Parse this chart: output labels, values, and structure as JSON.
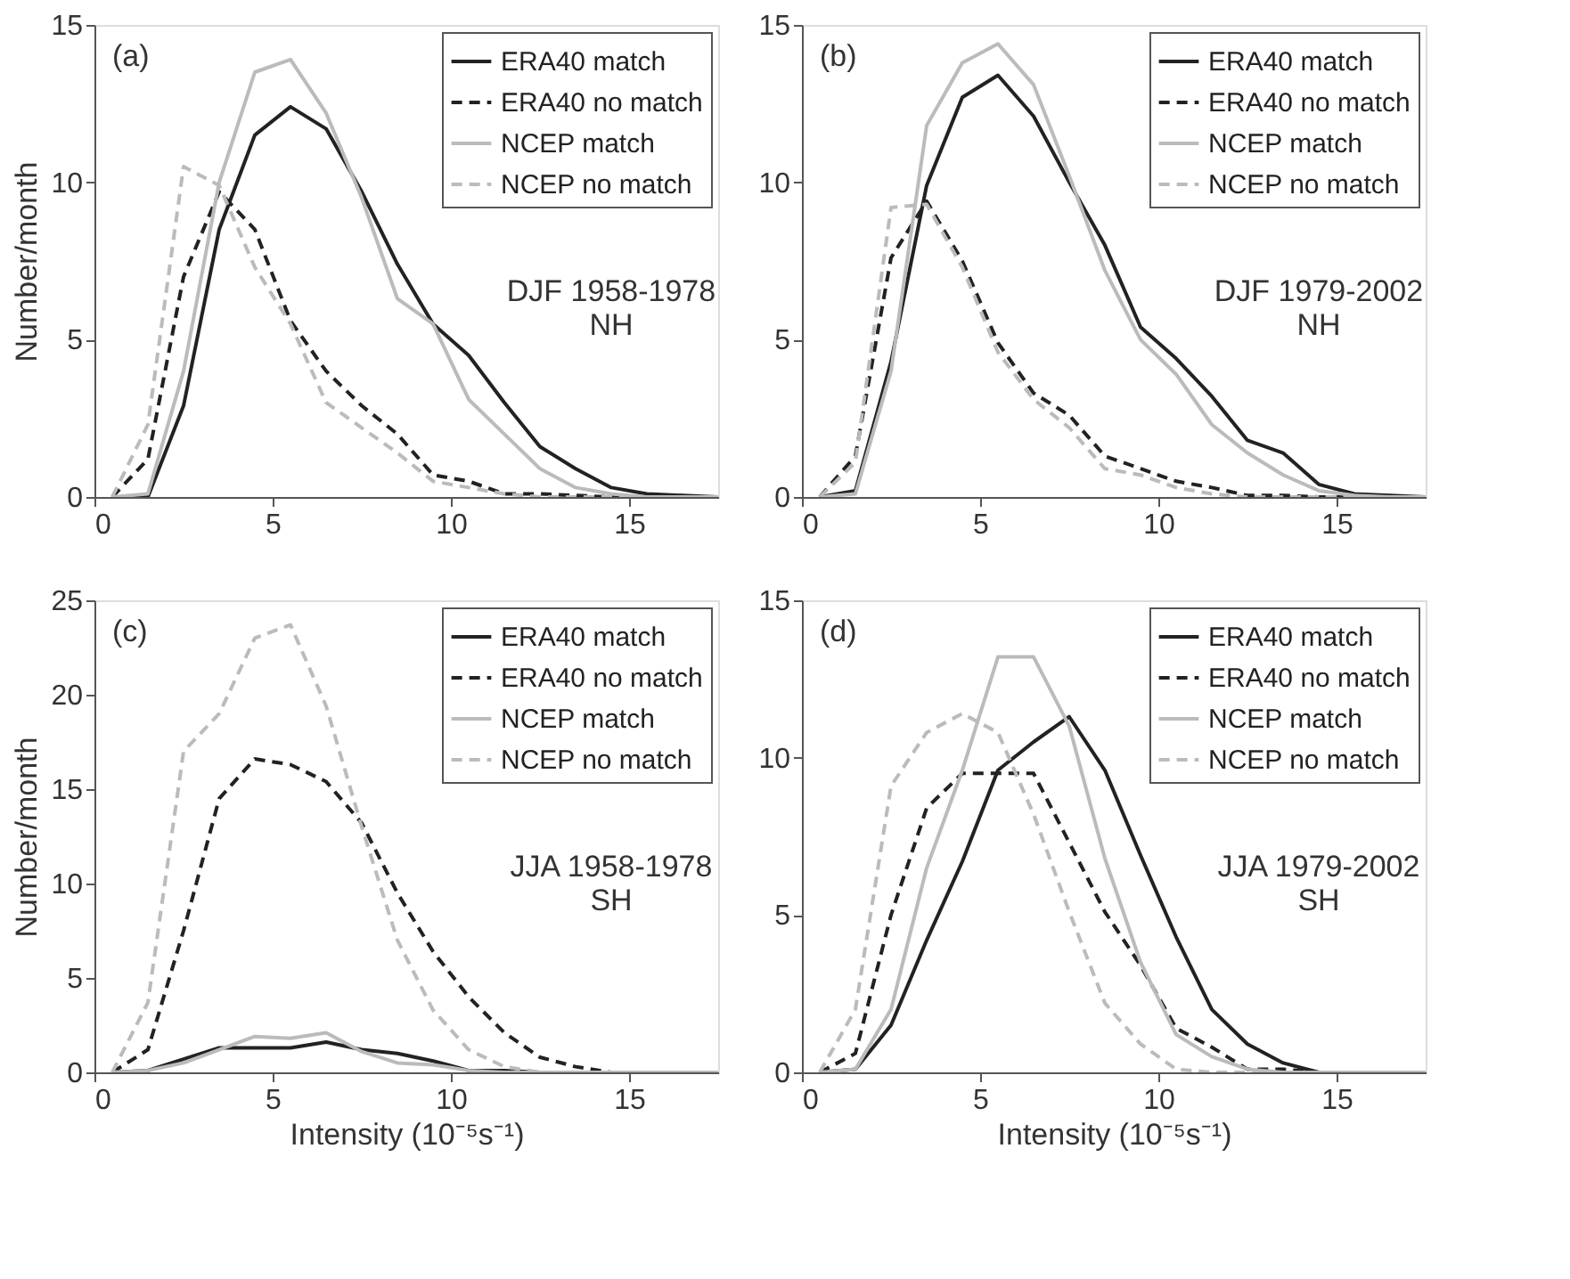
{
  "chart_data": [
    {
      "type": "line",
      "title": null,
      "ylabel": "Number/month",
      "annotations": [
        "(a)",
        "DJF 1958-1978\nNH"
      ],
      "legend": "top right",
      "grid": false,
      "xlim": [
        0,
        17.5
      ],
      "xticks": [
        0,
        5,
        10,
        15
      ],
      "ylim": [
        0,
        15
      ],
      "yticks": [
        0,
        5,
        10,
        15
      ],
      "x": [
        0.5,
        1.5,
        2.5,
        3.5,
        4.5,
        5.5,
        6.5,
        7.5,
        8.5,
        9.5,
        10.5,
        11.5,
        12.5,
        13.5,
        14.5,
        15.5,
        16.5,
        17.5
      ],
      "series": [
        {
          "name": "ERA40 match",
          "color": "#222222",
          "line_style": "solid",
          "values": [
            0,
            0,
            2.9,
            8.5,
            11.5,
            12.4,
            11.7,
            9.7,
            7.4,
            5.5,
            4.5,
            3.0,
            1.6,
            0.9,
            0.3,
            0.1,
            0.05,
            0
          ]
        },
        {
          "name": "ERA40 no match",
          "color": "#222222",
          "line_style": "dashed",
          "values": [
            0,
            1.2,
            7.0,
            9.7,
            8.5,
            5.6,
            4.0,
            2.9,
            2.0,
            0.7,
            0.5,
            0.1,
            0.1,
            0.05,
            0,
            0,
            0,
            0
          ]
        },
        {
          "name": "NCEP match",
          "color": "#bbbbbb",
          "line_style": "solid",
          "values": [
            0,
            0.1,
            4.0,
            10.0,
            13.5,
            13.9,
            12.2,
            9.5,
            6.3,
            5.5,
            3.1,
            2.0,
            0.9,
            0.3,
            0.1,
            0,
            0,
            0
          ]
        },
        {
          "name": "NCEP no match",
          "color": "#bbbbbb",
          "line_style": "dashed",
          "values": [
            0,
            2.3,
            10.5,
            9.9,
            7.3,
            5.5,
            3.0,
            2.2,
            1.4,
            0.5,
            0.3,
            0.1,
            0,
            0,
            0,
            0,
            0,
            0
          ]
        }
      ]
    },
    {
      "type": "line",
      "title": null,
      "annotations": [
        "(b)",
        "DJF 1979-2002\nNH"
      ],
      "legend": "top right",
      "grid": false,
      "xlim": [
        0,
        17.5
      ],
      "xticks": [
        0,
        5,
        10,
        15
      ],
      "ylim": [
        0,
        15
      ],
      "yticks": [
        0,
        5,
        10,
        15
      ],
      "x": [
        0.5,
        1.5,
        2.5,
        3.5,
        4.5,
        5.5,
        6.5,
        7.5,
        8.5,
        9.5,
        10.5,
        11.5,
        12.5,
        13.5,
        14.5,
        15.5,
        16.5,
        17.5
      ],
      "series": [
        {
          "name": "ERA40 match",
          "color": "#222222",
          "line_style": "solid",
          "values": [
            0,
            0.2,
            4.3,
            9.9,
            12.7,
            13.4,
            12.1,
            10.0,
            8.0,
            5.4,
            4.4,
            3.2,
            1.8,
            1.4,
            0.4,
            0.1,
            0.05,
            0
          ]
        },
        {
          "name": "ERA40 no match",
          "color": "#222222",
          "line_style": "dashed",
          "values": [
            0,
            1.3,
            7.6,
            9.4,
            7.5,
            4.9,
            3.3,
            2.6,
            1.3,
            0.9,
            0.5,
            0.3,
            0.05,
            0.05,
            0,
            0,
            0,
            0
          ]
        },
        {
          "name": "NCEP match",
          "color": "#bbbbbb",
          "line_style": "solid",
          "values": [
            0,
            0.1,
            4.0,
            11.8,
            13.8,
            14.4,
            13.1,
            10.2,
            7.2,
            5.0,
            3.9,
            2.3,
            1.4,
            0.7,
            0.2,
            0.05,
            0,
            0
          ]
        },
        {
          "name": "NCEP no match",
          "color": "#bbbbbb",
          "line_style": "dashed",
          "values": [
            0,
            1.1,
            9.2,
            9.3,
            7.3,
            4.6,
            3.1,
            2.2,
            0.9,
            0.7,
            0.3,
            0.1,
            0,
            0,
            0,
            0,
            0,
            0
          ]
        }
      ]
    },
    {
      "type": "line",
      "title": null,
      "xlabel": "Intensity (10⁻⁵s⁻¹)",
      "ylabel": "Number/month",
      "annotations": [
        "(c)",
        "JJA 1958-1978\nSH"
      ],
      "legend": "top right",
      "grid": false,
      "xlim": [
        0,
        17.5
      ],
      "xticks": [
        0,
        5,
        10,
        15
      ],
      "ylim": [
        0,
        25
      ],
      "yticks": [
        0,
        5,
        10,
        15,
        20,
        25
      ],
      "x": [
        0.5,
        1.5,
        2.5,
        3.5,
        4.5,
        5.5,
        6.5,
        7.5,
        8.5,
        9.5,
        10.5,
        11.5,
        12.5,
        13.5,
        14.5,
        15.5,
        16.5,
        17.5
      ],
      "series": [
        {
          "name": "ERA40 match",
          "color": "#222222",
          "line_style": "solid",
          "values": [
            0,
            0.1,
            0.7,
            1.3,
            1.3,
            1.3,
            1.6,
            1.2,
            1.0,
            0.6,
            0.1,
            0.1,
            0,
            0,
            0,
            0,
            0,
            0
          ]
        },
        {
          "name": "ERA40 no match",
          "color": "#222222",
          "line_style": "dashed",
          "values": [
            0,
            1.2,
            7.5,
            14.5,
            16.6,
            16.3,
            15.4,
            13.2,
            9.5,
            6.4,
            4.0,
            2.1,
            0.8,
            0.3,
            0,
            0,
            0,
            0
          ]
        },
        {
          "name": "NCEP match",
          "color": "#bbbbbb",
          "line_style": "solid",
          "values": [
            0,
            0.1,
            0.5,
            1.2,
            1.9,
            1.8,
            2.1,
            1.1,
            0.5,
            0.4,
            0.1,
            0,
            0,
            0,
            0,
            0,
            0,
            0
          ]
        },
        {
          "name": "NCEP no match",
          "color": "#bbbbbb",
          "line_style": "dashed",
          "values": [
            0,
            3.7,
            17.0,
            19.0,
            23.0,
            23.7,
            19.4,
            13.0,
            7.0,
            3.3,
            1.2,
            0.3,
            0,
            0,
            0,
            0,
            0,
            0
          ]
        }
      ]
    },
    {
      "type": "line",
      "title": null,
      "xlabel": "Intensity (10⁻⁵s⁻¹)",
      "annotations": [
        "(d)",
        "JJA 1979-2002\nSH"
      ],
      "legend": "top right",
      "grid": false,
      "xlim": [
        0,
        17.5
      ],
      "xticks": [
        0,
        5,
        10,
        15
      ],
      "ylim": [
        0,
        15
      ],
      "yticks": [
        0,
        5,
        10,
        15
      ],
      "x": [
        0.5,
        1.5,
        2.5,
        3.5,
        4.5,
        5.5,
        6.5,
        7.5,
        8.5,
        9.5,
        10.5,
        11.5,
        12.5,
        13.5,
        14.5,
        15.5,
        16.5,
        17.5
      ],
      "series": [
        {
          "name": "ERA40 match",
          "color": "#222222",
          "line_style": "solid",
          "values": [
            0,
            0.1,
            1.5,
            4.2,
            6.7,
            9.6,
            10.5,
            11.3,
            9.6,
            6.9,
            4.3,
            2.0,
            0.9,
            0.3,
            0,
            0,
            0,
            0
          ]
        },
        {
          "name": "ERA40 no match",
          "color": "#222222",
          "line_style": "dashed",
          "values": [
            0,
            0.6,
            5.0,
            8.4,
            9.5,
            9.5,
            9.5,
            7.3,
            5.1,
            3.4,
            1.4,
            0.8,
            0.1,
            0.1,
            0,
            0,
            0,
            0
          ]
        },
        {
          "name": "NCEP match",
          "color": "#bbbbbb",
          "line_style": "solid",
          "values": [
            0,
            0.1,
            2.0,
            6.5,
            9.6,
            13.2,
            13.2,
            11.0,
            6.8,
            3.5,
            1.2,
            0.5,
            0.1,
            0,
            0,
            0,
            0,
            0
          ]
        },
        {
          "name": "NCEP no match",
          "color": "#bbbbbb",
          "line_style": "dashed",
          "values": [
            0,
            2.0,
            9.1,
            10.8,
            11.4,
            10.8,
            8.2,
            5.1,
            2.2,
            0.9,
            0.1,
            0,
            0,
            0,
            0,
            0,
            0,
            0
          ]
        }
      ]
    }
  ]
}
